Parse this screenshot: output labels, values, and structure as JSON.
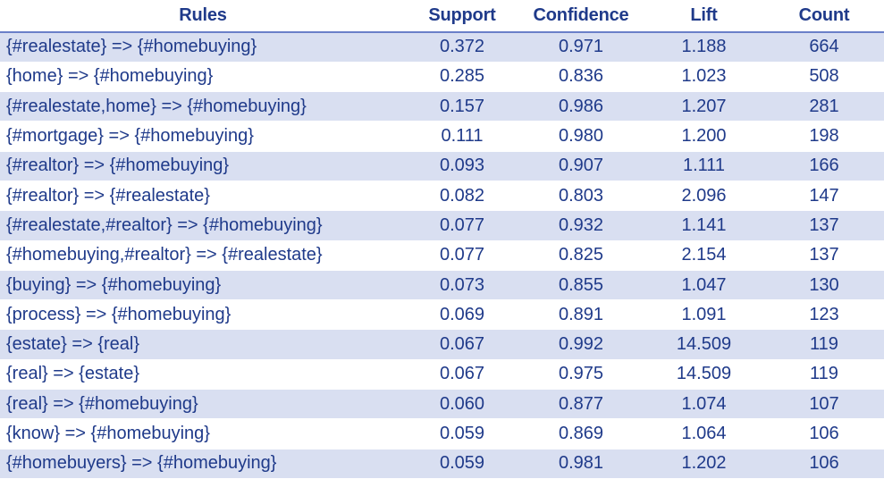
{
  "table": {
    "headers": {
      "rules": "Rules",
      "support": "Support",
      "confidence": "Confidence",
      "lift": "Lift",
      "count": "Count"
    },
    "rows": [
      {
        "rule": "{#realestate} => {#homebuying}",
        "support": "0.372",
        "confidence": "0.971",
        "lift": "1.188",
        "count": "664"
      },
      {
        "rule": "{home} => {#homebuying}",
        "support": "0.285",
        "confidence": "0.836",
        "lift": "1.023",
        "count": "508"
      },
      {
        "rule": "{#realestate,home} => {#homebuying}",
        "support": "0.157",
        "confidence": "0.986",
        "lift": "1.207",
        "count": "281"
      },
      {
        "rule": "{#mortgage} => {#homebuying}",
        "support": "0.111",
        "confidence": "0.980",
        "lift": "1.200",
        "count": "198"
      },
      {
        "rule": "{#realtor} => {#homebuying}",
        "support": "0.093",
        "confidence": "0.907",
        "lift": "1.111",
        "count": "166"
      },
      {
        "rule": "{#realtor} => {#realestate}",
        "support": "0.082",
        "confidence": "0.803",
        "lift": "2.096",
        "count": "147"
      },
      {
        "rule": "{#realestate,#realtor} => {#homebuying}",
        "support": "0.077",
        "confidence": "0.932",
        "lift": "1.141",
        "count": "137"
      },
      {
        "rule": "{#homebuying,#realtor} => {#realestate}",
        "support": "0.077",
        "confidence": "0.825",
        "lift": "2.154",
        "count": "137"
      },
      {
        "rule": "{buying} => {#homebuying}",
        "support": "0.073",
        "confidence": "0.855",
        "lift": "1.047",
        "count": "130"
      },
      {
        "rule": "{process} => {#homebuying}",
        "support": "0.069",
        "confidence": "0.891",
        "lift": "1.091",
        "count": "123"
      },
      {
        "rule": "{estate} => {real}",
        "support": "0.067",
        "confidence": "0.992",
        "lift": "14.509",
        "count": "119"
      },
      {
        "rule": "{real} => {estate}",
        "support": "0.067",
        "confidence": "0.975",
        "lift": "14.509",
        "count": "119"
      },
      {
        "rule": "{real} => {#homebuying}",
        "support": "0.060",
        "confidence": "0.877",
        "lift": "1.074",
        "count": "107"
      },
      {
        "rule": "{know} => {#homebuying}",
        "support": "0.059",
        "confidence": "0.869",
        "lift": "1.064",
        "count": "106"
      },
      {
        "rule": "{#homebuyers} => {#homebuying}",
        "support": "0.059",
        "confidence": "0.981",
        "lift": "1.202",
        "count": "106"
      }
    ]
  }
}
